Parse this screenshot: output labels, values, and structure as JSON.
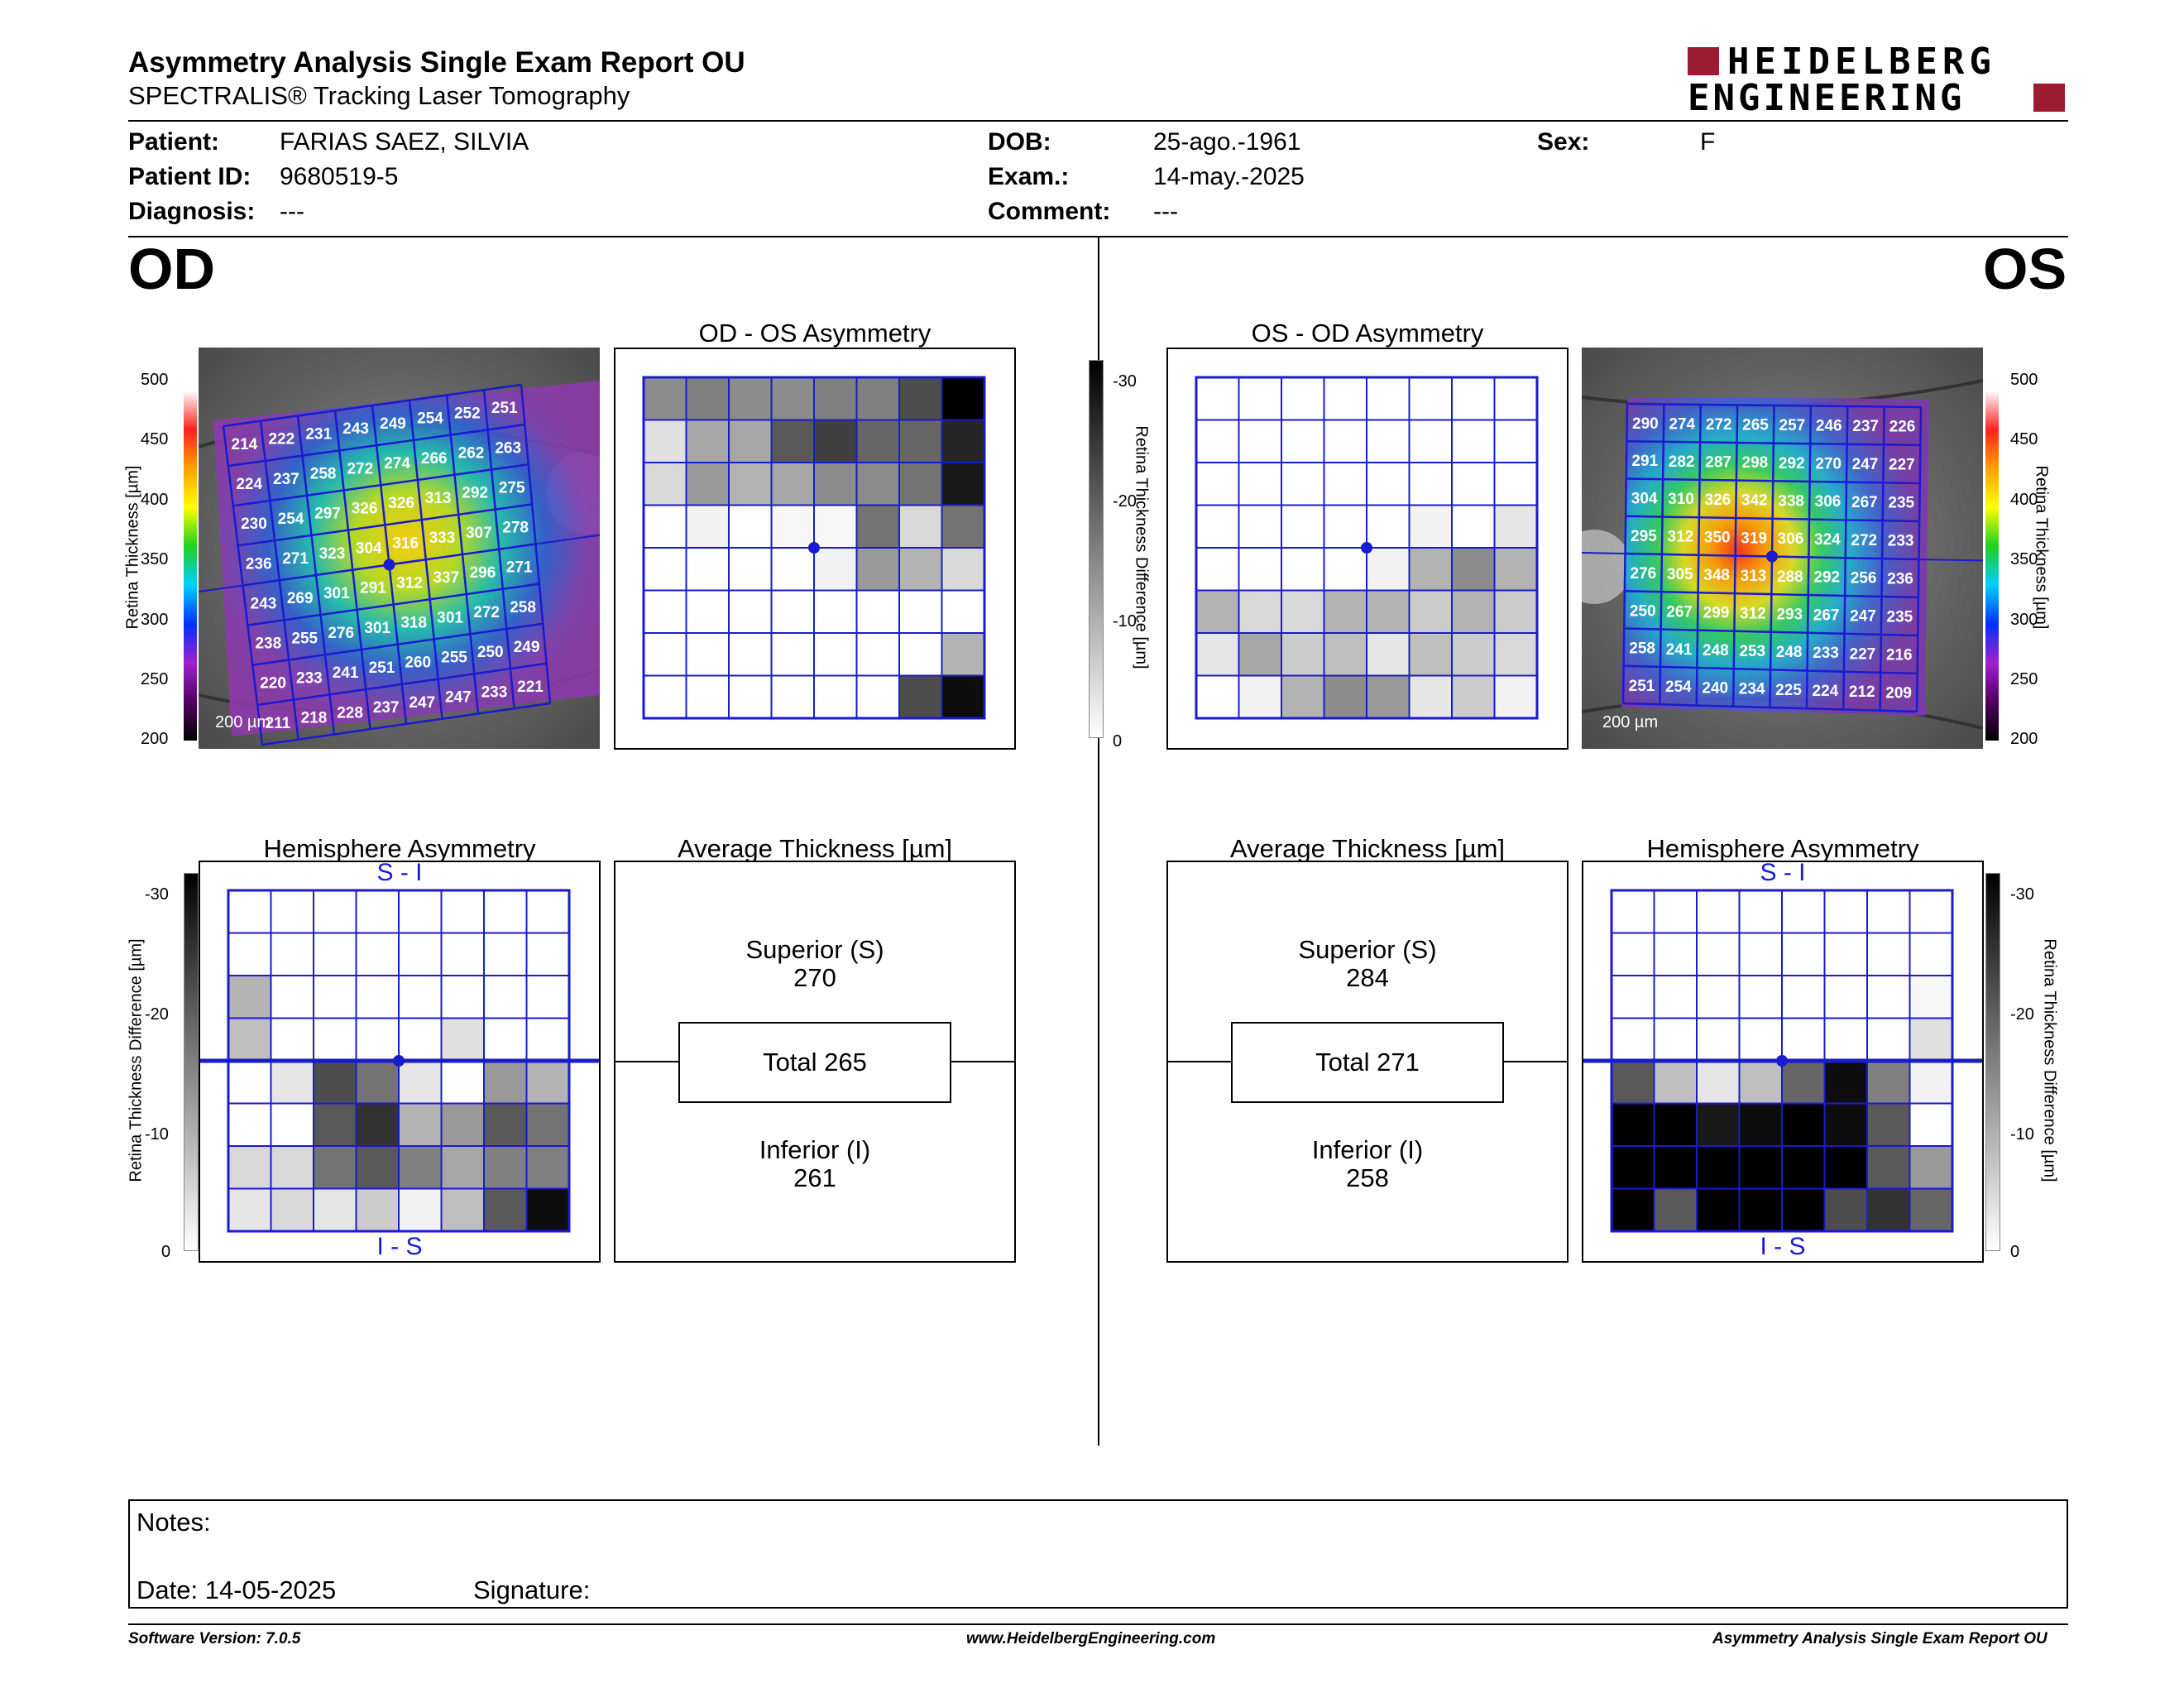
{
  "header": {
    "title": "Asymmetry Analysis Single Exam Report OU",
    "subtitle": "SPECTRALIS® Tracking Laser Tomography",
    "logo_line1": "HEIDELBERG",
    "logo_line2": "ENGINEERING",
    "brand_color": "#9b1b30"
  },
  "patient": {
    "patient_label": "Patient:",
    "patient_value": "FARIAS SAEZ, SILVIA",
    "id_label": "Patient ID:",
    "id_value": "9680519-5",
    "diagnosis_label": "Diagnosis:",
    "diagnosis_value": "---",
    "dob_label": "DOB:",
    "dob_value": "25-ago.-1961",
    "exam_label": "Exam.:",
    "exam_value": "14-may.-2025",
    "comment_label": "Comment:",
    "comment_value": "---",
    "sex_label": "Sex:",
    "sex_value": "F"
  },
  "od": {
    "eye_label": "OD",
    "asym_title": "OD - OS Asymmetry",
    "hemi_title": "Hemisphere Asymmetry",
    "avg_title": "Average Thickness [µm]",
    "superior_label": "Superior (S)",
    "superior_value": "270",
    "total_label": "Total 265",
    "inferior_label": "Inferior (I)",
    "inferior_value": "261",
    "hemi_top": "S - I",
    "hemi_bottom": "I - S",
    "scale_text": "200 µm",
    "thickness_grid": [
      [
        "214",
        "222",
        "231",
        "243",
        "249",
        "254",
        "252",
        "251"
      ],
      [
        "224",
        "237",
        "258",
        "272",
        "274",
        "266",
        "262",
        "263"
      ],
      [
        "230",
        "254",
        "297",
        "326",
        "326",
        "313",
        "292",
        "275"
      ],
      [
        "236",
        "271",
        "323",
        "304",
        "316",
        "333",
        "307",
        "278"
      ],
      [
        "243",
        "269",
        "301",
        "291",
        "312",
        "337",
        "296",
        "271"
      ],
      [
        "238",
        "255",
        "276",
        "301",
        "318",
        "301",
        "272",
        "258"
      ],
      [
        "220",
        "233",
        "241",
        "251",
        "260",
        "255",
        "250",
        "249"
      ],
      [
        "211",
        "218",
        "228",
        "237",
        "247",
        "247",
        "233",
        "221"
      ]
    ],
    "asym_levels": [
      [
        0.45,
        0.5,
        0.45,
        0.45,
        0.5,
        0.5,
        0.7,
        1.0
      ],
      [
        0.12,
        0.35,
        0.35,
        0.65,
        0.75,
        0.6,
        0.6,
        0.85
      ],
      [
        0.15,
        0.4,
        0.3,
        0.35,
        0.45,
        0.45,
        0.55,
        0.9
      ],
      [
        0,
        0.05,
        0,
        0.03,
        0.03,
        0.55,
        0.15,
        0.55
      ],
      [
        0,
        0,
        0,
        0,
        0.05,
        0.4,
        0.3,
        0.15
      ],
      [
        0,
        0,
        0,
        0,
        0,
        0,
        0,
        0
      ],
      [
        0,
        0,
        0,
        0,
        0,
        0,
        0,
        0.3
      ],
      [
        0,
        0,
        0,
        0,
        0,
        0,
        0.7,
        0.95
      ]
    ],
    "hemi_levels": [
      [
        0,
        0,
        0,
        0,
        0,
        0,
        0,
        0
      ],
      [
        0,
        0,
        0,
        0,
        0,
        0,
        0,
        0
      ],
      [
        0.3,
        0,
        0,
        0,
        0,
        0,
        0,
        0
      ],
      [
        0.25,
        0,
        0,
        0,
        0,
        0.12,
        0,
        0
      ],
      [
        0,
        0.1,
        0.7,
        0.55,
        0.1,
        0,
        0.4,
        0.3
      ],
      [
        0,
        0,
        0.65,
        0.8,
        0.3,
        0.4,
        0.65,
        0.55
      ],
      [
        0.15,
        0.15,
        0.55,
        0.65,
        0.5,
        0.35,
        0.5,
        0.5
      ],
      [
        0.1,
        0.15,
        0.1,
        0.2,
        0.05,
        0.25,
        0.65,
        0.95
      ]
    ]
  },
  "os": {
    "eye_label": "OS",
    "asym_title": "OS - OD Asymmetry",
    "hemi_title": "Hemisphere Asymmetry",
    "avg_title": "Average Thickness [µm]",
    "superior_label": "Superior (S)",
    "superior_value": "284",
    "total_label": "Total 271",
    "inferior_label": "Inferior (I)",
    "inferior_value": "258",
    "hemi_top": "S - I",
    "hemi_bottom": "I - S",
    "scale_text": "200 µm",
    "thickness_grid": [
      [
        "290",
        "274",
        "272",
        "265",
        "257",
        "246",
        "237",
        "226"
      ],
      [
        "291",
        "282",
        "287",
        "298",
        "292",
        "270",
        "247",
        "227"
      ],
      [
        "304",
        "310",
        "326",
        "342",
        "338",
        "306",
        "267",
        "235"
      ],
      [
        "295",
        "312",
        "350",
        "319",
        "306",
        "324",
        "272",
        "233"
      ],
      [
        "276",
        "305",
        "348",
        "313",
        "288",
        "292",
        "256",
        "236"
      ],
      [
        "250",
        "267",
        "299",
        "312",
        "293",
        "267",
        "247",
        "235"
      ],
      [
        "258",
        "241",
        "248",
        "253",
        "248",
        "233",
        "227",
        "216"
      ],
      [
        "251",
        "254",
        "240",
        "234",
        "225",
        "224",
        "212",
        "209"
      ]
    ],
    "asym_levels": [
      [
        0,
        0,
        0,
        0,
        0,
        0,
        0,
        0
      ],
      [
        0,
        0,
        0,
        0,
        0,
        0,
        0,
        0
      ],
      [
        0,
        0,
        0,
        0,
        0,
        0,
        0,
        0
      ],
      [
        0,
        0,
        0,
        0,
        0,
        0.05,
        0,
        0.1
      ],
      [
        0,
        0,
        0,
        0,
        0.05,
        0.3,
        0.45,
        0.3
      ],
      [
        0.3,
        0.15,
        0.15,
        0.3,
        0.3,
        0.2,
        0.3,
        0.2
      ],
      [
        0.1,
        0.35,
        0.2,
        0.25,
        0.1,
        0.25,
        0.2,
        0.15
      ],
      [
        0,
        0.05,
        0.3,
        0.45,
        0.4,
        0.1,
        0.2,
        0.05
      ]
    ],
    "hemi_levels": [
      [
        0,
        0,
        0,
        0,
        0,
        0,
        0,
        0
      ],
      [
        0,
        0,
        0,
        0,
        0,
        0,
        0,
        0
      ],
      [
        0,
        0,
        0,
        0,
        0,
        0,
        0,
        0.03
      ],
      [
        0,
        0,
        0,
        0,
        0,
        0,
        0,
        0.12
      ],
      [
        0.65,
        0.25,
        0.1,
        0.25,
        0.6,
        0.95,
        0.5,
        0.05
      ],
      [
        1.0,
        1.0,
        0.9,
        0.95,
        1.0,
        0.95,
        0.65,
        0
      ],
      [
        1.0,
        1.0,
        1.0,
        1.0,
        1.0,
        1.0,
        0.65,
        0.4
      ],
      [
        1.0,
        0.65,
        1.0,
        1.0,
        1.0,
        0.7,
        0.8,
        0.6
      ]
    ]
  },
  "colorbar": {
    "thickness_label": "Retina Thickness [µm]",
    "thickness_ticks": [
      "500",
      "450",
      "400",
      "350",
      "300",
      "250",
      "200"
    ],
    "diff_label": "Retina Thickness Difference [µm]",
    "diff_ticks": [
      "-30",
      "-20",
      "-10",
      "0"
    ]
  },
  "notes": {
    "notes_label": "Notes:",
    "date_label": "Date: 14-05-2025",
    "signature_label": "Signature:"
  },
  "footer": {
    "software": "Software Version: 7.0.5",
    "website": "www.HeidelbergEngineering.com",
    "report_name": "Asymmetry Analysis Single Exam Report OU"
  }
}
